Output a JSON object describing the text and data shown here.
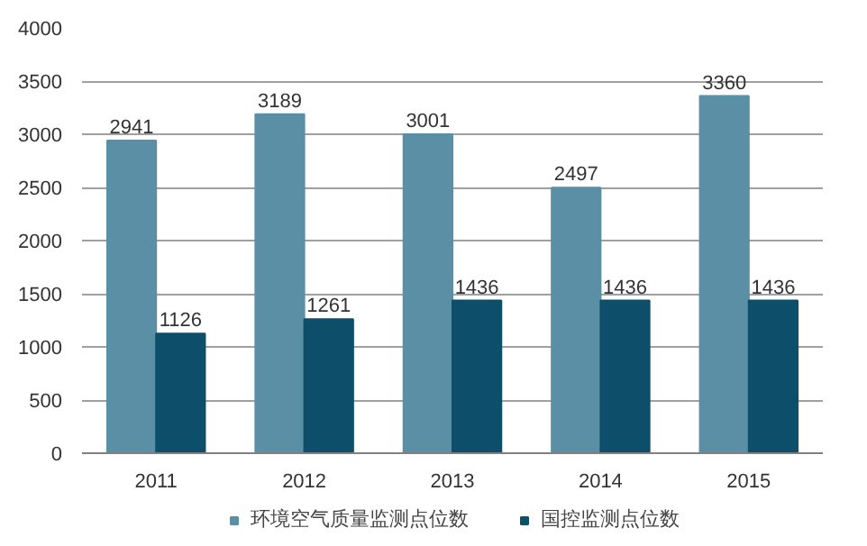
{
  "chart_data": {
    "type": "bar",
    "categories": [
      "2011",
      "2012",
      "2013",
      "2014",
      "2015"
    ],
    "series": [
      {
        "name": "环境空气质量监测点位数",
        "color": "#5b8fa6",
        "values": [
          2941,
          3189,
          3001,
          2497,
          3360
        ]
      },
      {
        "name": "国控监测点位数",
        "color": "#0d4f6a",
        "values": [
          1126,
          1261,
          1436,
          1436,
          1436
        ]
      }
    ],
    "ylim": [
      0,
      4000
    ],
    "yticks": [
      0,
      500,
      1000,
      1500,
      2000,
      2500,
      3000,
      3500,
      4000
    ],
    "grid": "y",
    "legend": "bottom",
    "data_labels": true
  }
}
